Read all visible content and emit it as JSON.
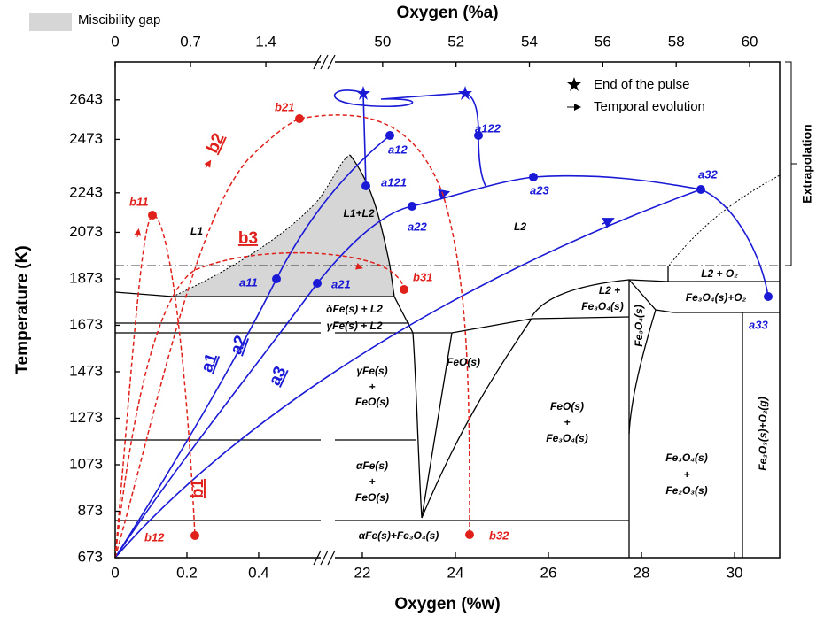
{
  "chart_data": {
    "type": "phase-diagram",
    "x_label": "Oxygen (%w)",
    "x2_label": "Oxygen (%a)",
    "y_label": "Temperature (K)",
    "ylim": [
      673,
      2806
    ],
    "yticks": [
      673,
      873,
      1073,
      1273,
      1473,
      1673,
      1873,
      2073,
      2243,
      2473,
      2643
    ],
    "x_segments": [
      {
        "xlim": [
          0,
          0.573
        ],
        "xticks": [
          0,
          0.2,
          0.4
        ]
      },
      {
        "xlim": [
          21.41,
          30.97
        ],
        "xticks": [
          22,
          24,
          26,
          28,
          30
        ]
      }
    ],
    "x2_segments": [
      {
        "xlim": [
          0,
          1.91
        ],
        "xticks": [
          0,
          0.7,
          1.4
        ]
      },
      {
        "xlim": [
          48.7,
          60.82
        ],
        "xticks": [
          50,
          52,
          54,
          56,
          58,
          60
        ]
      }
    ],
    "legend": {
      "gap": "Miscibility gap",
      "star": "End of the pulse",
      "arrow": "Temporal evolution"
    },
    "extrapolation": "Extrapolation",
    "regions": {
      "l1": "L1",
      "l1l2": "L1+L2",
      "l2": "L2",
      "dfe": "δFe(s) + L2",
      "gfe": "γFe(s) + L2",
      "gfe_feo": [
        "γFe(s)",
        "+",
        "FeO(s)"
      ],
      "feo": "FeO(s)",
      "l2_fe3o4": [
        "L2 +",
        "Fe₃O₄(s)"
      ],
      "fe3o4": "Fe₃O₄(s)",
      "l2_o2": "L2 + O₂",
      "fe3o4_o2": "Fe₃O₄(s)+O₂",
      "feo_fe3o4": [
        "FeO(s)",
        "+",
        "Fe₃O₄(s)"
      ],
      "afe_feo": [
        "αFe(s)",
        "+",
        "FeO(s)"
      ],
      "fe3o4_fe2o3": [
        "Fe₃O₄(s)",
        "+",
        "Fe₂O₃(s)"
      ],
      "fe2o3_o2": "Fe₂O₃(s)+O₂(g)",
      "afe_fe3o4": "αFe(s)+Fe₃O₄(s)"
    },
    "points": {
      "a11": "a11",
      "a12": "a12",
      "a121": "a121",
      "a122": "a122",
      "a21": "a21",
      "a22": "a22",
      "a23": "a23",
      "a32": "a32",
      "a33": "a33",
      "b11": "b11",
      "b12": "b12",
      "b21": "b21",
      "b31": "b31",
      "b32": "b32"
    },
    "paths": {
      "a1": "a1",
      "a2": "a2",
      "a3": "a3",
      "b1": "b1",
      "b2": "b2",
      "b3": "b3"
    }
  }
}
